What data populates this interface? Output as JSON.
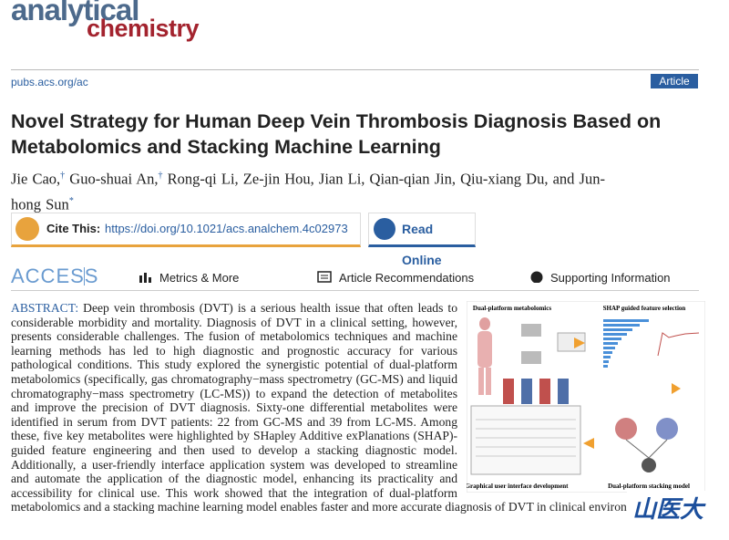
{
  "journal": {
    "name_top": "analytical",
    "name_bottom": "chemistry"
  },
  "url": "pubs.acs.org/ac",
  "article_type": "Article",
  "title": "Novel Strategy for Human Deep Vein Thrombosis Diagnosis Based on Metabolomics and Stacking Machine Learning",
  "authors": [
    {
      "name": "Jie Cao,",
      "sup": "†"
    },
    {
      "name": "Guo-shuai An,",
      "sup": "†"
    },
    {
      "name": "Rong-qi Li,"
    },
    {
      "name": "Ze-jin Hou,"
    },
    {
      "name": "Jian Li,"
    },
    {
      "name": "Qian-qian Jin,"
    },
    {
      "name": "Qiu-xiang Du,"
    },
    {
      "name": "and Jun-hong Sun",
      "sup": "*"
    }
  ],
  "cite": {
    "label": "Cite This:",
    "doi": "https://doi.org/10.1021/acs.analchem.4c02973"
  },
  "read_online": "Read Online",
  "access": "ACCESS",
  "tabs": [
    "Metrics & More",
    "Article Recommendations",
    "Supporting Information"
  ],
  "abstract": {
    "label": "ABSTRACT:",
    "text": "Deep vein thrombosis (DVT) is a serious health issue that often leads to considerable morbidity and mortality. Diagnosis of DVT in a clinical setting, however, presents considerable challenges. The fusion of metabolomics techniques and machine learning methods has led to high diagnostic and prognostic accuracy for various pathological conditions. This study explored the synergistic potential of dual-platform metabolomics (specifically, gas chromatography−mass spectrometry (GC-MS) and liquid chromatography−mass spectrometry (LC-MS)) to expand the detection of metabolites and improve the precision of DVT diagnosis. Sixty-one differential metabolites were identified in serum from DVT patients: 22 from GC-MS and 39 from LC-MS. Among these, five key metabolites were highlighted by SHapley Additive exPlanations (SHAP)-guided feature engineering and then used to develop a stacking diagnostic model. Additionally, a user-friendly interface application system was developed to streamline and automate the application of the diagnostic model, enhancing its practicality and accessibility for clinical use. This work showed that the integration of dual-platform metabolomics and a stacking machine learning model enables faster and more accurate diagnosis of DVT in clinical environments."
  },
  "graphic": {
    "panels": [
      "Dual-platform metabolomics",
      "SHAP guided feature selection",
      "Graphical user interface development",
      "Dual-platform stacking model"
    ]
  },
  "watermark": "山医大"
}
